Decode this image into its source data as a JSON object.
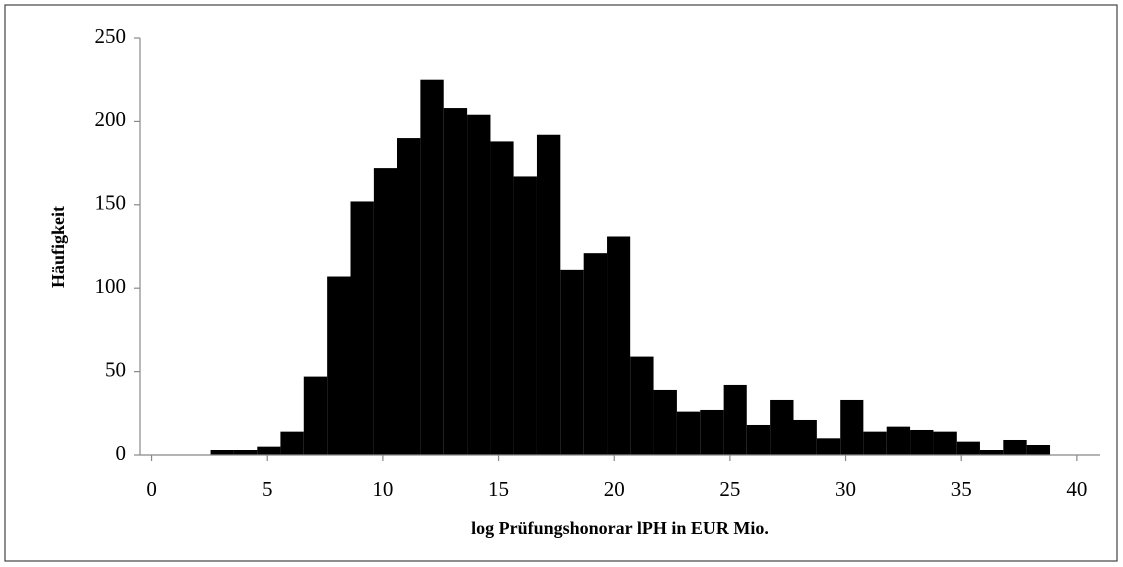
{
  "chart_data": {
    "type": "histogram",
    "xlabel": "log Prüfungshonorar lPH in EUR Mio.",
    "ylabel": "Häufigkeit",
    "bins": [
      2.55,
      3.56,
      4.57,
      5.57,
      6.58,
      7.59,
      8.6,
      9.61,
      10.61,
      11.62,
      12.63,
      13.64,
      14.65,
      15.65,
      16.66,
      17.67,
      18.68,
      19.69,
      20.69,
      21.7,
      22.71,
      23.72,
      24.73,
      25.73,
      26.74,
      27.75,
      28.76,
      29.77,
      30.77,
      31.78,
      32.79,
      33.8,
      34.81,
      35.81,
      36.82,
      37.83,
      38.84
    ],
    "values": [
      3,
      3,
      5,
      14,
      47,
      107,
      152,
      172,
      190,
      225,
      208,
      204,
      188,
      167,
      192,
      111,
      121,
      131,
      59,
      39,
      26,
      27,
      42,
      18,
      33,
      21,
      10,
      33,
      14,
      17,
      15,
      14,
      8,
      3,
      9,
      6
    ],
    "color": "#000000",
    "xlim": [
      -0.5,
      41
    ],
    "xticks": [
      0,
      5,
      10,
      15,
      20,
      25,
      30,
      35,
      40
    ],
    "ylim": [
      0,
      250
    ],
    "yticks": [
      0,
      50,
      100,
      150,
      200,
      250
    ]
  }
}
